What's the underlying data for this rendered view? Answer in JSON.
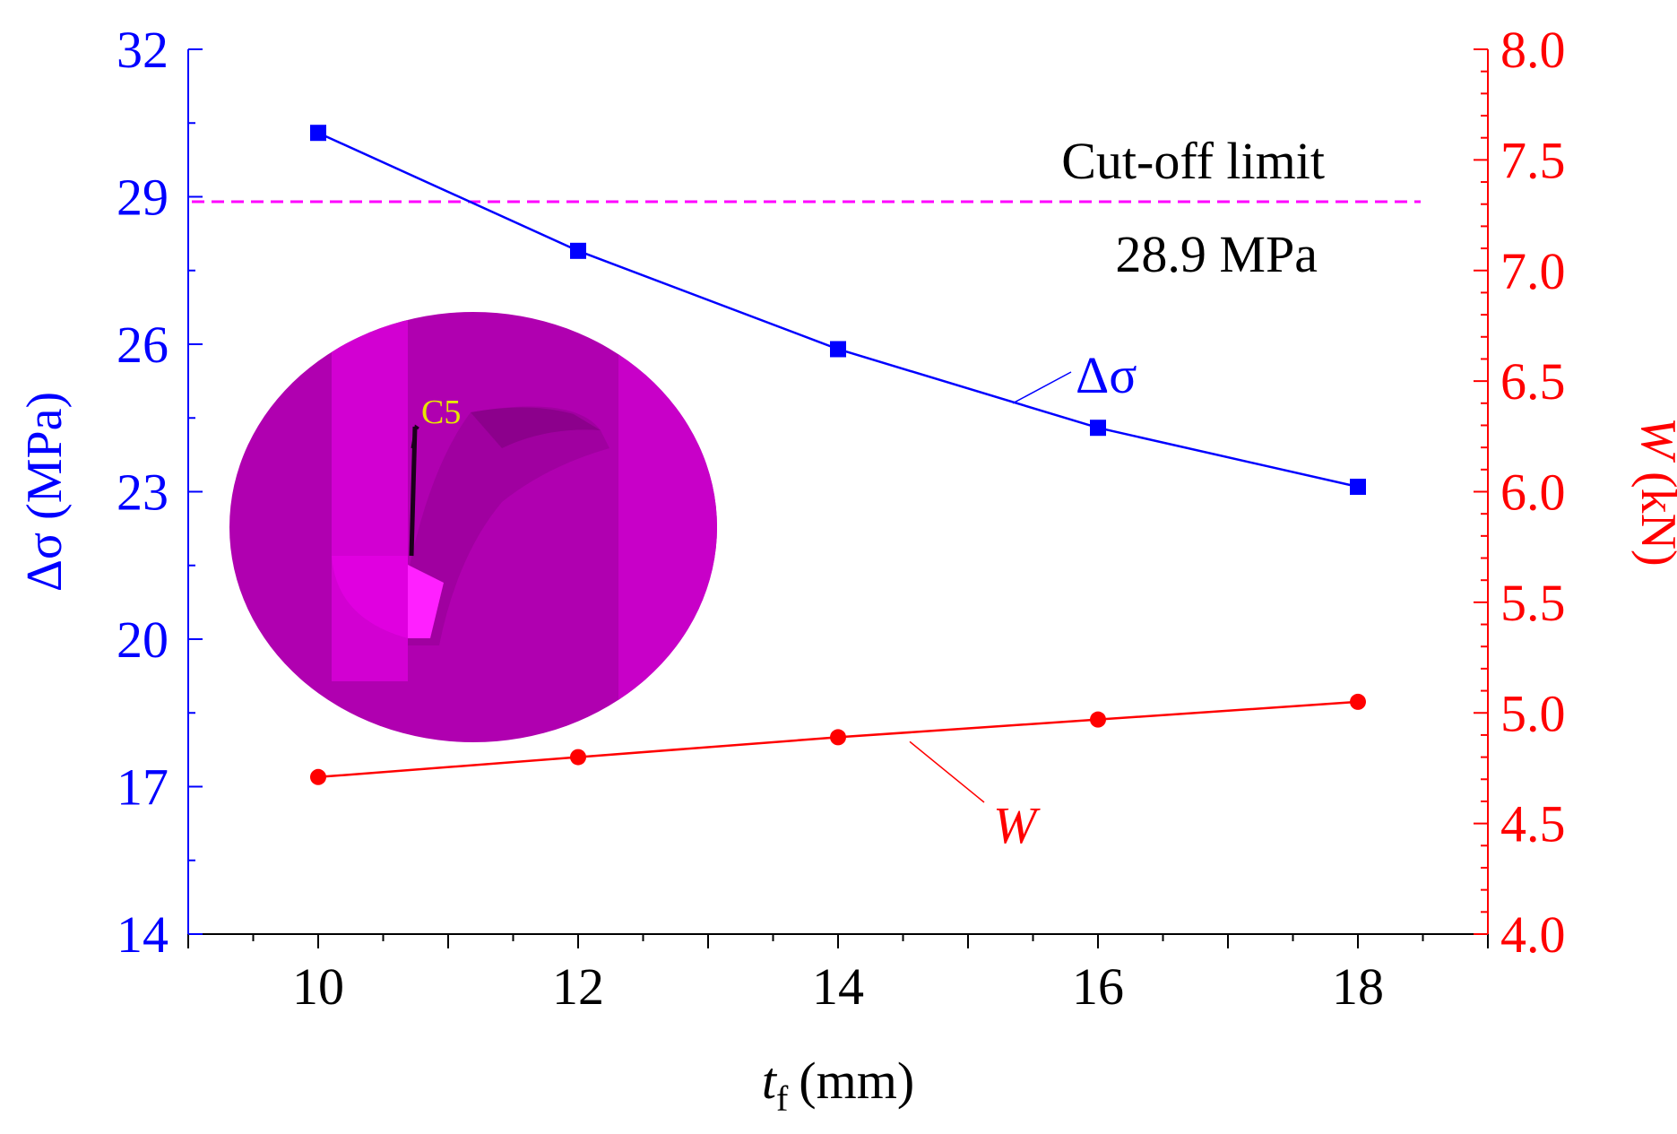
{
  "chart_data": {
    "type": "line",
    "x": [
      10,
      12,
      14,
      16,
      18
    ],
    "xlim": [
      9,
      19
    ],
    "x_ticks": [
      10,
      12,
      14,
      16,
      18
    ],
    "xlabel": {
      "main": "t",
      "sub": "f",
      "unit": "(mm)"
    },
    "left_axis": {
      "label": "Δσ (MPa)",
      "ylim": [
        14,
        32
      ],
      "ticks": [
        14,
        17,
        20,
        23,
        26,
        29,
        32
      ],
      "color": "#0000ff"
    },
    "right_axis": {
      "label_var": "W",
      "label_unit": " (kN)",
      "ylim": [
        4.0,
        8.0
      ],
      "ticks": [
        "4.0",
        "4.5",
        "5.0",
        "5.5",
        "6.0",
        "6.5",
        "7.0",
        "7.5",
        "8.0"
      ],
      "color": "#ff0000"
    },
    "series": [
      {
        "name": "Δσ",
        "axis": "left",
        "marker": "square",
        "color": "#0000ff",
        "values": [
          30.3,
          27.9,
          25.9,
          24.3,
          23.1
        ]
      },
      {
        "name": "W",
        "axis": "right",
        "marker": "circle",
        "color": "#ff0000",
        "values": [
          4.71,
          4.8,
          4.89,
          4.97,
          5.05
        ]
      }
    ],
    "reference_line": {
      "value": 28.9,
      "axis": "left",
      "style": "dashed",
      "color": "#ff00ff",
      "label_line1": "Cut-off limit",
      "label_line2": "28.9 MPa"
    },
    "inset": {
      "label": "C5",
      "label_color": "#e6e600"
    }
  }
}
